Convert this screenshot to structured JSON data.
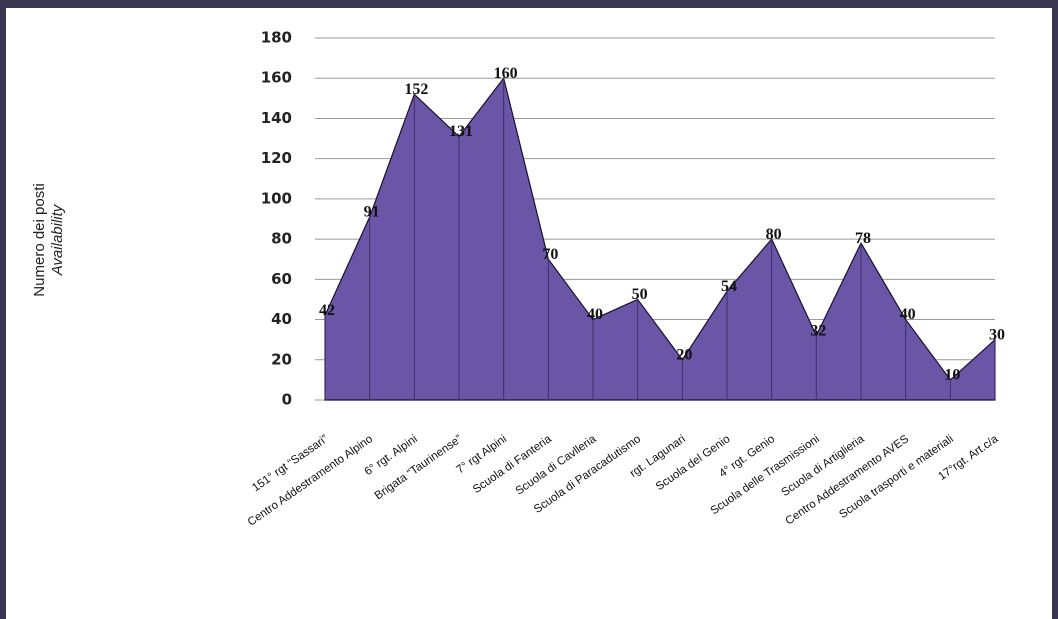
{
  "chart_data": {
    "type": "area",
    "ylabel": "Numero dei posti",
    "ylabel_subtitle": "Availability",
    "categories": [
      "151° rgt “Sassari”",
      "Centro Addestramento Alpino",
      "6° rgt. Alpini",
      "Brigata “Taurinense”",
      "7° rgt Alpini",
      "Scuola di Fanteria",
      "Scuola di Cavlleria",
      "Scuola di Paracadutismo",
      "rgt. Lagunari",
      "Scuola del Genio",
      "4° rgt. Genio",
      "Scuola delle Trasmissioni",
      "Scuola di Artiglieria",
      "Centro Addestramento AVES",
      "Scuola trasporti e materiali",
      "17°rgt. Art.c/a"
    ],
    "values": [
      42,
      91,
      152,
      131,
      160,
      70,
      40,
      50,
      20,
      54,
      80,
      32,
      78,
      40,
      10,
      30
    ],
    "color": "#6b55a6",
    "ylim": [
      0,
      180
    ],
    "yticks": [
      0,
      20,
      40,
      60,
      80,
      100,
      120,
      140,
      160,
      180
    ],
    "grid": true
  }
}
